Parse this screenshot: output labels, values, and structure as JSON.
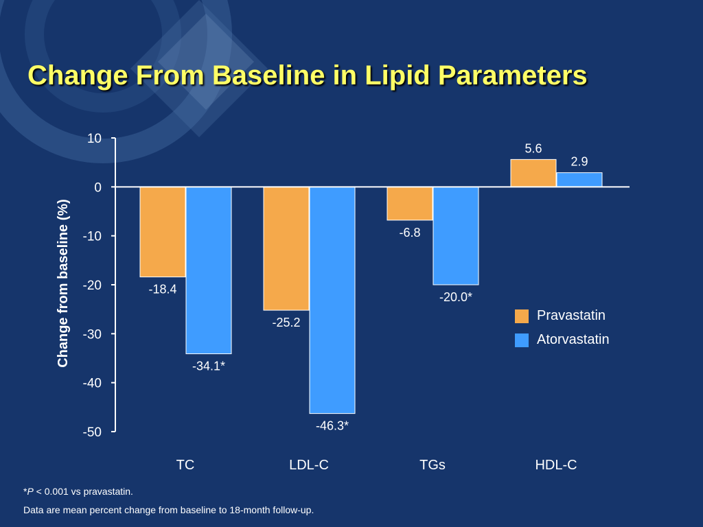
{
  "title": "Change From Baseline in Lipid Parameters",
  "footnotes": {
    "star": "*",
    "p_symbol": "P",
    "significance": " < 0.001 vs pravastatin.",
    "description": "Data are mean percent change from baseline to 18-month follow-up."
  },
  "colors": {
    "background": "#16356b",
    "title": "#ffff66",
    "pravastatin": "#f5a94b",
    "atorvastatin": "#3f9cff"
  },
  "chart_data": {
    "type": "bar",
    "title": "",
    "xlabel": "",
    "ylabel": "Change from baseline (%)",
    "ylim": [
      -50,
      10
    ],
    "yticks": [
      10,
      0,
      -10,
      -20,
      -30,
      -40,
      -50
    ],
    "categories": [
      "TC",
      "LDL-C",
      "TGs",
      "HDL-C"
    ],
    "series": [
      {
        "name": "Pravastatin",
        "values": [
          -18.4,
          -25.2,
          -6.8,
          5.6
        ],
        "labels": [
          "-18.4",
          "-25.2",
          "-6.8",
          "5.6"
        ]
      },
      {
        "name": "Atorvastatin",
        "values": [
          -34.1,
          -46.3,
          -20.0,
          2.9
        ],
        "labels": [
          "-34.1*",
          "-46.3*",
          "-20.0*",
          "2.9"
        ]
      }
    ],
    "legend_position": "right"
  }
}
